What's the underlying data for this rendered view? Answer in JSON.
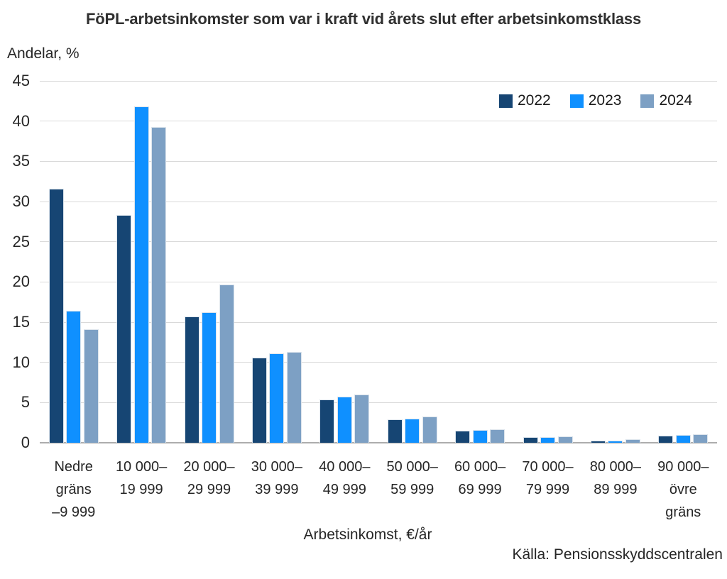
{
  "chart_data": {
    "type": "bar",
    "title": "FöPL-arbetsinkomster som var i kraft vid årets slut efter arbetsinkomstklass",
    "ylabel": "Andelar, %",
    "xlabel": "Arbetsinkomst, €/år",
    "source": "Källa: Pensionsskyddscentralen",
    "ylim": [
      0,
      45
    ],
    "ytick_step": 5,
    "grid": true,
    "legend_position": "top-right",
    "categories": [
      "Nedre gräns –9 999",
      "10 000–19 999",
      "20 000–29 999",
      "30 000–39 999",
      "40 000–49 999",
      "50 000–59 999",
      "60 000–69 999",
      "70 000–79 999",
      "80 000–89 999",
      "90 000–övre gräns"
    ],
    "category_lines": [
      [
        "Nedre",
        "gräns",
        "–9 999"
      ],
      [
        "10 000–",
        "19 999"
      ],
      [
        "20 000–",
        "29 999"
      ],
      [
        "30 000–",
        "39 999"
      ],
      [
        "40 000–",
        "49 999"
      ],
      [
        "50 000–",
        "59 999"
      ],
      [
        "60 000–",
        "69 999"
      ],
      [
        "70 000–",
        "79 999"
      ],
      [
        "80 000–",
        "89 999"
      ],
      [
        "90 000–",
        "övre",
        "gräns"
      ]
    ],
    "series": [
      {
        "name": "2022",
        "color": "#164573",
        "values": [
          31.6,
          28.3,
          15.7,
          10.6,
          5.4,
          2.9,
          1.5,
          0.7,
          0.3,
          0.9
        ]
      },
      {
        "name": "2023",
        "color": "#0f90ff",
        "values": [
          16.4,
          41.8,
          16.2,
          11.1,
          5.7,
          3.0,
          1.6,
          0.7,
          0.3,
          1.0
        ]
      },
      {
        "name": "2024",
        "color": "#7da0c4",
        "values": [
          14.1,
          39.3,
          19.7,
          11.3,
          6.0,
          3.3,
          1.7,
          0.8,
          0.4,
          1.1
        ]
      }
    ],
    "grid_color": "#d9d9d9",
    "axis_color": "#adadad",
    "text_color": "#262626"
  }
}
